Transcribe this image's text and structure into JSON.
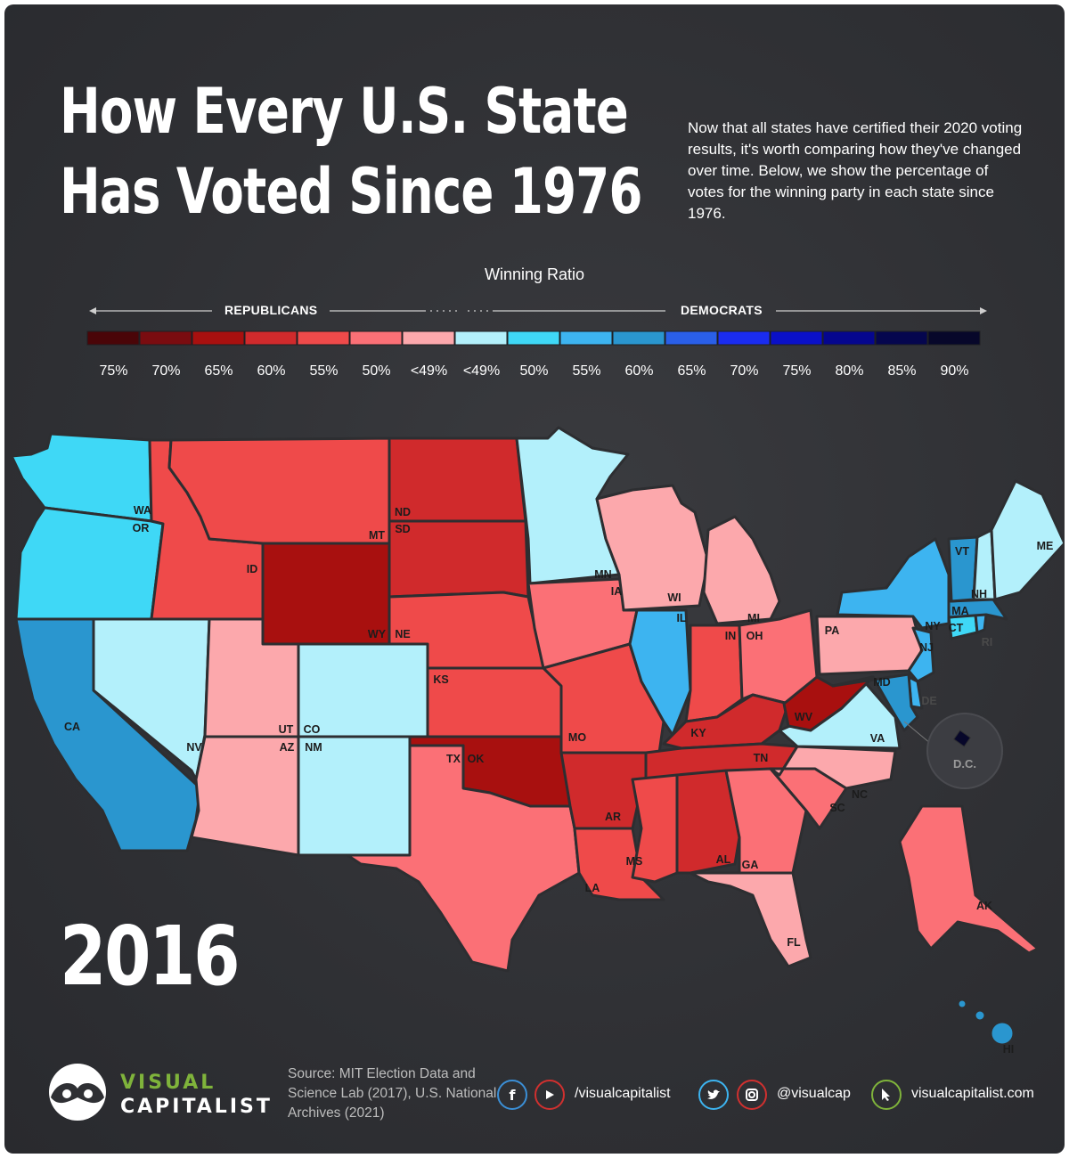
{
  "title": {
    "line1": "How Every U.S. State",
    "line2": "Has Voted Since 1976"
  },
  "intro": "Now that all states have certified their 2020 voting results, it's worth comparing how they've changed over time. Below, we show the percentage of votes for the winning party in each state since 1976.",
  "legend": {
    "title": "Winning Ratio",
    "left_label": "REPUBLICANS",
    "right_label": "DEMOCRATS",
    "bins": [
      {
        "label": "75%",
        "color": "#4a0508"
      },
      {
        "label": "70%",
        "color": "#7a0c10"
      },
      {
        "label": "65%",
        "color": "#a8100f"
      },
      {
        "label": "60%",
        "color": "#d02a2c"
      },
      {
        "label": "55%",
        "color": "#ef4a4a"
      },
      {
        "label": "50%",
        "color": "#fb7076"
      },
      {
        "label": "<49%",
        "color": "#fca8ac"
      },
      {
        "label": "<49%",
        "color": "#b3f0fb"
      },
      {
        "label": "50%",
        "color": "#3fd8f6"
      },
      {
        "label": "55%",
        "color": "#3db4f0"
      },
      {
        "label": "60%",
        "color": "#2a96cf"
      },
      {
        "label": "65%",
        "color": "#2a5fe8"
      },
      {
        "label": "70%",
        "color": "#1a2cf0"
      },
      {
        "label": "75%",
        "color": "#0a10c8"
      },
      {
        "label": "80%",
        "color": "#05068e"
      },
      {
        "label": "85%",
        "color": "#05064e"
      },
      {
        "label": "90%",
        "color": "#07072a"
      }
    ]
  },
  "year": "2016",
  "states": [
    {
      "abbr": "WA",
      "color": "#3fd8f6"
    },
    {
      "abbr": "OR",
      "color": "#3fd8f6"
    },
    {
      "abbr": "CA",
      "color": "#2a96cf"
    },
    {
      "abbr": "NV",
      "color": "#b3f0fb"
    },
    {
      "abbr": "ID",
      "color": "#ef4a4a"
    },
    {
      "abbr": "MT",
      "color": "#ef4a4a"
    },
    {
      "abbr": "WY",
      "color": "#a8100f"
    },
    {
      "abbr": "UT",
      "color": "#fca8ac"
    },
    {
      "abbr": "AZ",
      "color": "#fca8ac"
    },
    {
      "abbr": "CO",
      "color": "#b3f0fb"
    },
    {
      "abbr": "NM",
      "color": "#b3f0fb"
    },
    {
      "abbr": "ND",
      "color": "#d02a2c"
    },
    {
      "abbr": "SD",
      "color": "#d02a2c"
    },
    {
      "abbr": "NE",
      "color": "#ef4a4a"
    },
    {
      "abbr": "KS",
      "color": "#ef4a4a"
    },
    {
      "abbr": "OK",
      "color": "#a8100f"
    },
    {
      "abbr": "TX",
      "color": "#fb7076"
    },
    {
      "abbr": "MN",
      "color": "#b3f0fb"
    },
    {
      "abbr": "IA",
      "color": "#fb7076"
    },
    {
      "abbr": "MO",
      "color": "#ef4a4a"
    },
    {
      "abbr": "AR",
      "color": "#d02a2c"
    },
    {
      "abbr": "LA",
      "color": "#ef4a4a"
    },
    {
      "abbr": "WI",
      "color": "#fca8ac"
    },
    {
      "abbr": "IL",
      "color": "#3db4f0"
    },
    {
      "abbr": "MI",
      "color": "#fca8ac"
    },
    {
      "abbr": "IN",
      "color": "#ef4a4a"
    },
    {
      "abbr": "OH",
      "color": "#fb7076"
    },
    {
      "abbr": "KY",
      "color": "#d02a2c"
    },
    {
      "abbr": "TN",
      "color": "#d02a2c"
    },
    {
      "abbr": "MS",
      "color": "#ef4a4a"
    },
    {
      "abbr": "AL",
      "color": "#d02a2c"
    },
    {
      "abbr": "GA",
      "color": "#fb7076"
    },
    {
      "abbr": "FL",
      "color": "#fca8ac"
    },
    {
      "abbr": "SC",
      "color": "#fb7076"
    },
    {
      "abbr": "NC",
      "color": "#fca8ac"
    },
    {
      "abbr": "VA",
      "color": "#b3f0fb"
    },
    {
      "abbr": "WV",
      "color": "#a8100f"
    },
    {
      "abbr": "PA",
      "color": "#fca8ac"
    },
    {
      "abbr": "NY",
      "color": "#3db4f0"
    },
    {
      "abbr": "NJ",
      "color": "#3db4f0"
    },
    {
      "abbr": "DE",
      "color": "#3db4f0"
    },
    {
      "abbr": "MD",
      "color": "#2a96cf"
    },
    {
      "abbr": "CT",
      "color": "#3fd8f6"
    },
    {
      "abbr": "RI",
      "color": "#3db4f0"
    },
    {
      "abbr": "MA",
      "color": "#2a96cf"
    },
    {
      "abbr": "VT",
      "color": "#2a96cf"
    },
    {
      "abbr": "NH",
      "color": "#b3f0fb"
    },
    {
      "abbr": "ME",
      "color": "#b3f0fb"
    },
    {
      "abbr": "AK",
      "color": "#fb7076"
    },
    {
      "abbr": "HI",
      "color": "#2a96cf"
    },
    {
      "abbr": "D.C.",
      "color": "#07072a"
    }
  ],
  "footer": {
    "brand_top": "VISUAL",
    "brand_bottom": "CAPITALIST",
    "source": "Source: MIT Election Data and Science Lab (2017), U.S. National Archives (2021)",
    "social": [
      {
        "icon": "facebook-icon",
        "color": "#3b8fd6"
      },
      {
        "icon": "youtube-icon",
        "color": "#d0302f"
      },
      {
        "icon": "twitter-icon",
        "color": "#3db4f0"
      },
      {
        "icon": "instagram-icon",
        "color": "#d0302f"
      },
      {
        "icon": "cursor-icon",
        "color": "#7fb33b"
      }
    ],
    "youtube_handle": "/visualcapitalist",
    "twitter_handle": "@visualcap",
    "website": "visualcapitalist.com"
  }
}
